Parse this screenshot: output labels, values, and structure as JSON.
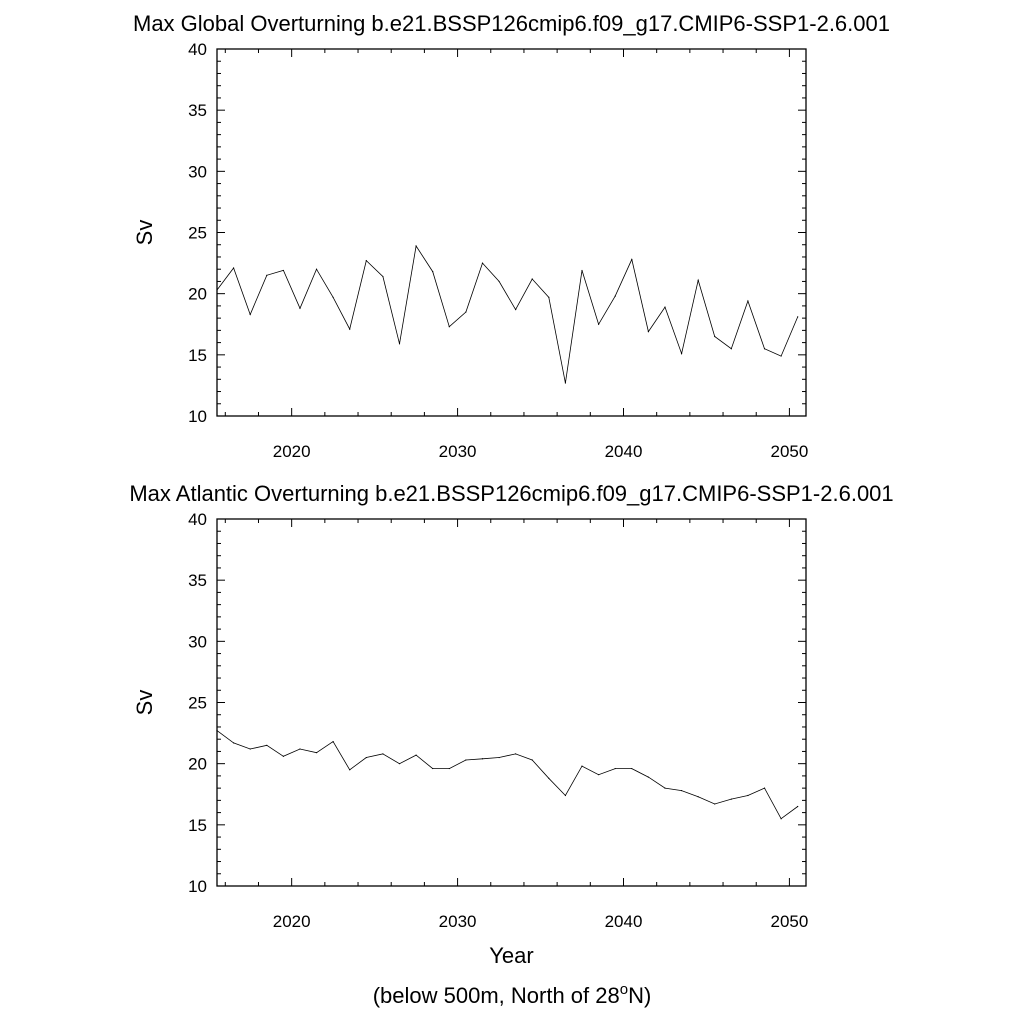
{
  "chart_data": [
    {
      "type": "line",
      "title": "Max Global Overturning b.e21.BSSP126cmip6.f09_g17.CMIP6-SSP1-2.6.001",
      "ylabel": "Sv",
      "xlabel": "",
      "xlim": [
        2015.5,
        2051
      ],
      "ylim": [
        10,
        40
      ],
      "xticks": [
        2020,
        2030,
        2040,
        2050
      ],
      "yticks": [
        10,
        15,
        20,
        25,
        30,
        35,
        40
      ],
      "grid": false,
      "series": [
        {
          "x": [
            2015.5,
            2016.5,
            2017.5,
            2018.5,
            2019.5,
            2020.5,
            2021.5,
            2022.5,
            2023.5,
            2024.5,
            2025.5,
            2026.5,
            2027.5,
            2028.5,
            2029.5,
            2030.5,
            2031.5,
            2032.5,
            2033.5,
            2034.5,
            2035.5,
            2036.5,
            2037.5,
            2038.5,
            2039.5,
            2040.5,
            2041.5,
            2042.5,
            2043.5,
            2044.5,
            2045.5,
            2046.5,
            2047.5,
            2048.5,
            2049.5,
            2050.5
          ],
          "values": [
            20.3,
            22.1,
            18.3,
            21.5,
            21.9,
            18.8,
            22.0,
            19.7,
            17.1,
            22.7,
            21.4,
            15.9,
            23.9,
            21.8,
            17.3,
            18.5,
            22.5,
            21.0,
            18.7,
            21.2,
            19.7,
            12.7,
            21.9,
            17.5,
            19.8,
            22.8,
            16.9,
            18.9,
            15.1,
            21.1,
            16.5,
            15.5,
            19.4,
            15.5,
            14.9,
            18.1
          ]
        }
      ]
    },
    {
      "type": "line",
      "title": "Max Atlantic Overturning b.e21.BSSP126cmip6.f09_g17.CMIP6-SSP1-2.6.001",
      "ylabel": "Sv",
      "xlabel": "Year",
      "xlim": [
        2015.5,
        2051
      ],
      "ylim": [
        10,
        40
      ],
      "xticks": [
        2020,
        2030,
        2040,
        2050
      ],
      "yticks": [
        10,
        15,
        20,
        25,
        30,
        35,
        40
      ],
      "grid": false,
      "series": [
        {
          "x": [
            2015.5,
            2016.5,
            2017.5,
            2018.5,
            2019.5,
            2020.5,
            2021.5,
            2022.5,
            2023.5,
            2024.5,
            2025.5,
            2026.5,
            2027.5,
            2028.5,
            2029.5,
            2030.5,
            2031.5,
            2032.5,
            2033.5,
            2034.5,
            2035.5,
            2036.5,
            2037.5,
            2038.5,
            2039.5,
            2040.5,
            2041.5,
            2042.5,
            2043.5,
            2044.5,
            2045.5,
            2046.5,
            2047.5,
            2048.5,
            2049.5,
            2050.5
          ],
          "values": [
            22.7,
            21.7,
            21.2,
            21.5,
            20.6,
            21.2,
            20.9,
            21.8,
            19.5,
            20.5,
            20.8,
            20.0,
            20.7,
            19.6,
            19.6,
            20.3,
            20.4,
            20.5,
            20.8,
            20.3,
            18.8,
            17.4,
            19.8,
            19.1,
            19.6,
            19.6,
            18.9,
            18.0,
            17.8,
            17.3,
            16.7,
            17.1,
            17.4,
            18.0,
            15.5,
            16.5
          ]
        }
      ]
    }
  ],
  "footnote": {
    "before": "(below 500m, North of 28",
    "superscript": "o",
    "after": "N)"
  }
}
